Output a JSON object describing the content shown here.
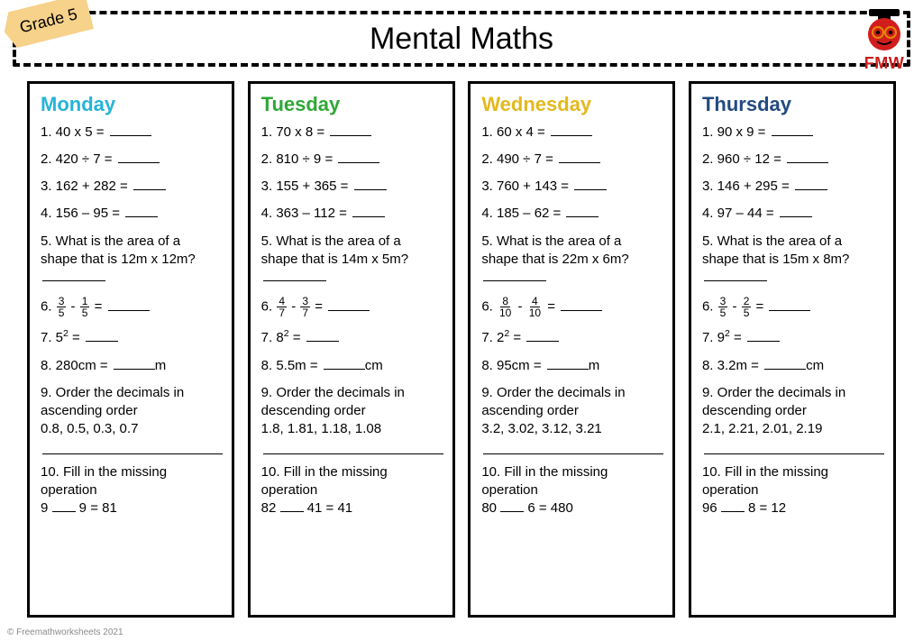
{
  "header": {
    "title": "Mental Maths",
    "grade_badge": "Grade 5",
    "logo_text": "FMW",
    "logo_colors": {
      "apple": "#d21d1d",
      "hat": "#000000",
      "glasses": "#e38a00"
    }
  },
  "day_colors": {
    "monday": "#25b4d6",
    "tuesday": "#2fa836",
    "wednesday": "#e3b91e",
    "thursday": "#234a80"
  },
  "days": [
    {
      "name": "Monday",
      "q1": "1. 40 x 5 = ",
      "q2": "2. 420 ÷ 7 = ",
      "q3": "3. 162 + 282 = ",
      "q4": "4. 156 – 95 = ",
      "q5_text": "5. What is the area of a shape that is 12m x 12m? ",
      "q6_prefix": "6. ",
      "q6_frac1": {
        "num": "3",
        "den": "5"
      },
      "q6_mid": " - ",
      "q6_frac2": {
        "num": "1",
        "den": "5"
      },
      "q6_suffix": " = ",
      "q7_prefix": "7. 5",
      "q7_exp": "2",
      "q7_suffix": " =  ",
      "q8_pre": "8. 280cm = ",
      "q8_unit": "m",
      "q9_text": "9. Order the decimals in ascending order",
      "q9_values": "0.8, 0.5, 0.3, 0.7",
      "q10_text": "10. Fill in the missing operation",
      "q10_expr_a": "9 ",
      "q10_expr_b": " 9 = 81"
    },
    {
      "name": "Tuesday",
      "q1": "1. 70 x 8 = ",
      "q2": "2. 810 ÷ 9 = ",
      "q3": "3. 155 + 365 = ",
      "q4": "4. 363 – 112 = ",
      "q5_text": "5. What is the area of a shape that is 14m x 5m? ",
      "q6_prefix": "6. ",
      "q6_frac1": {
        "num": "4",
        "den": "7"
      },
      "q6_mid": " - ",
      "q6_frac2": {
        "num": "3",
        "den": "7"
      },
      "q6_suffix": " = ",
      "q7_prefix": "7. 8",
      "q7_exp": "2",
      "q7_suffix": " =  ",
      "q8_pre": "8. 5.5m = ",
      "q8_unit": "cm",
      "q9_text": "9. Order the decimals in descending order",
      "q9_values": "1.8, 1.81, 1.18, 1.08",
      "q10_text": "10. Fill in the missing operation",
      "q10_expr_a": "82 ",
      "q10_expr_b": " 41 = 41"
    },
    {
      "name": "Wednesday",
      "q1": "1. 60 x 4 = ",
      "q2": "2. 490 ÷ 7 = ",
      "q3": "3. 760 + 143 = ",
      "q4": "4. 185 – 62 = ",
      "q5_text": "5. What is the area of a shape that is 22m x 6m? ",
      "q6_prefix": "6. ",
      "q6_frac1": {
        "num": "8",
        "den": "10"
      },
      "q6_mid": " - ",
      "q6_frac2": {
        "num": "4",
        "den": "10"
      },
      "q6_suffix": " = ",
      "q7_prefix": "7. 2",
      "q7_exp": "2",
      "q7_suffix": " =  ",
      "q8_pre": "8. 95cm = ",
      "q8_unit": "m",
      "q9_text": "9. Order the decimals in ascending order",
      "q9_values": "3.2, 3.02, 3.12, 3.21",
      "q10_text": "10. Fill in the missing operation",
      "q10_expr_a": "80 ",
      "q10_expr_b": " 6 = 480"
    },
    {
      "name": "Thursday",
      "q1": "1. 90 x 9 = ",
      "q2": "2. 960 ÷ 12 = ",
      "q3": "3. 146 + 295 = ",
      "q4": "4. 97 – 44 = ",
      "q5_text": "5. What is the area of a shape that is 15m x 8m? ",
      "q6_prefix": "6. ",
      "q6_frac1": {
        "num": "3",
        "den": "5"
      },
      "q6_mid": " - ",
      "q6_frac2": {
        "num": "2",
        "den": "5"
      },
      "q6_suffix": " = ",
      "q7_prefix": "7. 9",
      "q7_exp": "2",
      "q7_suffix": " =  ",
      "q8_pre": "8. 3.2m = ",
      "q8_unit": "cm",
      "q9_text": "9. Order the decimals in descending order",
      "q9_values": "2.1, 2.21, 2.01, 2.19",
      "q10_text": "10. Fill in the missing operation",
      "q10_expr_a": "96 ",
      "q10_expr_b": " 8 = 12"
    }
  ],
  "copyright": "© Freemathworksheets 2021"
}
